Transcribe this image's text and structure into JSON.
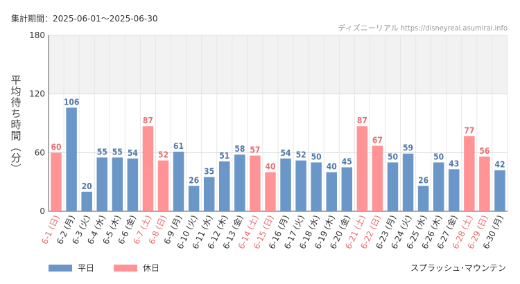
{
  "header": {
    "period": "集計期間：2025-06-01～2025-06-30",
    "credit": "ディズニーリアル https://disneyreal.asumirai.info"
  },
  "legend": {
    "weekday": "平日",
    "holiday": "休日"
  },
  "attraction": "スプラッシュ･マウンテン",
  "colors": {
    "weekday": "#6a97c8",
    "holiday": "#ff9396",
    "weekday_text": "#4f77a8",
    "holiday_text": "#ea6d70",
    "band": "#f2f2f2"
  },
  "chart_data": {
    "type": "bar",
    "ylabel": "平均待ち時間（分）",
    "ylim": [
      0,
      180
    ],
    "yticks": [
      0,
      60,
      120,
      180
    ],
    "highlight_band": [
      120,
      180
    ],
    "categories": [
      "6-1 (日)",
      "6-2 (月)",
      "6-3 (火)",
      "6-4 (水)",
      "6-5 (木)",
      "6-6 (金)",
      "6-7 (土)",
      "6-8 (日)",
      "6-9 (月)",
      "6-10 (火)",
      "6-11 (水)",
      "6-12 (木)",
      "6-13 (金)",
      "6-14 (土)",
      "6-15 (日)",
      "6-16 (月)",
      "6-17 (火)",
      "6-18 (水)",
      "6-19 (木)",
      "6-20 (金)",
      "6-21 (土)",
      "6-22 (日)",
      "6-23 (月)",
      "6-24 (火)",
      "6-25 (水)",
      "6-26 (木)",
      "6-27 (金)",
      "6-28 (土)",
      "6-29 (日)",
      "6-30 (月)"
    ],
    "values": [
      60,
      106,
      20,
      55,
      55,
      54,
      87,
      52,
      61,
      26,
      35,
      51,
      58,
      57,
      40,
      54,
      52,
      50,
      40,
      45,
      87,
      67,
      50,
      59,
      26,
      50,
      43,
      77,
      56,
      42
    ],
    "holiday": [
      true,
      false,
      false,
      false,
      false,
      false,
      true,
      true,
      false,
      false,
      false,
      false,
      false,
      true,
      true,
      false,
      false,
      false,
      false,
      false,
      true,
      true,
      false,
      false,
      false,
      false,
      false,
      true,
      true,
      false
    ]
  }
}
